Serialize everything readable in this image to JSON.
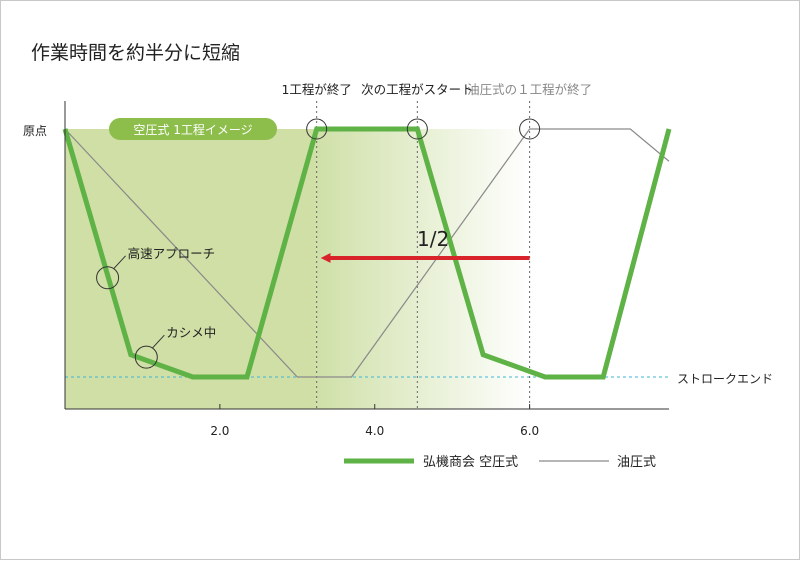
{
  "chart_data": {
    "type": "line",
    "title": "作業時間を約半分に短縮",
    "xlim": [
      0,
      7.8
    ],
    "ylim": [
      0,
      1
    ],
    "y_top_label": "原点",
    "y_bottom_label": "ストロークエンド",
    "x_ticks": [
      {
        "value": 2.0,
        "label": "2.0"
      },
      {
        "value": 4.0,
        "label": "4.0"
      },
      {
        "value": 6.0,
        "label": "6.0"
      }
    ],
    "shaded_region_label": "空圧式 1工程イメージ",
    "shaded_region_end": 3.25,
    "gradient_region": [
      3.25,
      6.0
    ],
    "series": [
      {
        "name": "弘機商会 空圧式",
        "color": "#5eb246",
        "x": [
          0.0,
          0.85,
          1.65,
          2.35,
          3.25,
          4.55,
          5.4,
          6.2,
          6.95,
          7.8
        ],
        "y": [
          1.0,
          0.09,
          0.0,
          0.0,
          1.0,
          1.0,
          0.09,
          0.0,
          0.0,
          1.0
        ]
      },
      {
        "name": "油圧式",
        "color": "#8a8a8a",
        "x": [
          0.0,
          3.0,
          3.7,
          6.0,
          7.3,
          7.8
        ],
        "y": [
          1.0,
          0.0,
          0.0,
          1.0,
          1.0,
          0.87
        ]
      }
    ],
    "annotations": [
      {
        "text": "1工程が終了",
        "x": 3.25
      },
      {
        "text": "次の工程がスタート",
        "x": 4.55
      },
      {
        "text": "油圧式の１工程が終了",
        "x": 6.0
      }
    ],
    "callouts": [
      {
        "text": "高速アプローチ",
        "x": 0.55,
        "y": 0.4
      },
      {
        "text": "カシメ中",
        "x": 1.05,
        "y": 0.08
      }
    ],
    "arrow": {
      "label": "1/2",
      "from_x": 6.0,
      "to_x": 3.25,
      "y": 0.48,
      "color": "#d9232a"
    }
  }
}
